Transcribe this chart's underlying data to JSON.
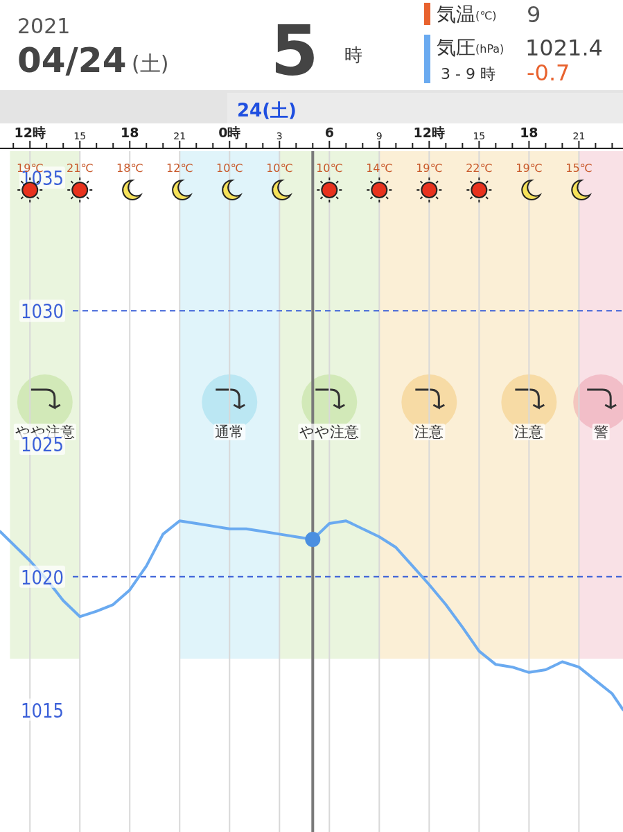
{
  "chart_data": {
    "type": "line",
    "x": [
      "2021-04-23T10:12",
      "2021-04-23T12:00",
      "2021-04-23T13:00",
      "2021-04-23T14:00",
      "2021-04-23T15:00",
      "2021-04-23T16:00",
      "2021-04-23T17:00",
      "2021-04-23T18:00",
      "2021-04-23T19:00",
      "2021-04-23T20:00",
      "2021-04-23T21:00",
      "2021-04-23T22:00",
      "2021-04-23T23:00",
      "2021-04-24T00:00",
      "2021-04-24T01:00",
      "2021-04-24T02:00",
      "2021-04-24T03:00",
      "2021-04-24T04:00",
      "2021-04-24T05:00",
      "2021-04-24T06:00",
      "2021-04-24T07:00",
      "2021-04-24T08:00",
      "2021-04-24T09:00",
      "2021-04-24T10:00",
      "2021-04-24T11:00",
      "2021-04-24T12:00",
      "2021-04-24T13:00",
      "2021-04-24T14:00",
      "2021-04-24T15:00",
      "2021-04-24T16:00",
      "2021-04-24T17:00",
      "2021-04-24T18:00",
      "2021-04-24T19:00",
      "2021-04-24T20:00",
      "2021-04-24T21:00",
      "2021-04-24T22:00",
      "2021-04-24T23:00",
      "2021-04-24T23:39"
    ],
    "series": [
      {
        "color": "#6aaaf0",
        "values": [
          1021.7,
          1020.6,
          1019.9,
          1019.1,
          1018.5,
          1018.7,
          1018.95,
          1019.5,
          1020.4,
          1021.6,
          1022.1,
          1022.0,
          1021.9,
          1021.8,
          1021.8,
          1021.7,
          1021.6,
          1021.5,
          1021.4,
          1022.0,
          1022.1,
          1021.8,
          1021.5,
          1021.1,
          1020.4,
          1019.7,
          1018.95,
          1018.1,
          1017.2,
          1016.7,
          1016.6,
          1016.4,
          1016.5,
          1016.8,
          1016.6,
          1016.1,
          1015.6,
          1015.0
        ]
      }
    ],
    "xlim": [
      "2021-04-23T10:12",
      "2021-04-24T23:39"
    ],
    "ylim": [
      1010.4,
      1036
    ],
    "yticks": [
      1015,
      1020,
      1025,
      1030,
      1035
    ],
    "xticks": [
      {
        "value": "2021-04-23T11:00",
        "label": null
      },
      {
        "value": "2021-04-23T12:00",
        "label": "12時"
      },
      {
        "value": "2021-04-23T13:00",
        "label": null
      },
      {
        "value": "2021-04-23T14:00",
        "label": null
      },
      {
        "value": "2021-04-23T15:00",
        "label": "15"
      },
      {
        "value": "2021-04-23T16:00",
        "label": null
      },
      {
        "value": "2021-04-23T17:00",
        "label": null
      },
      {
        "value": "2021-04-23T18:00",
        "label": "18"
      },
      {
        "value": "2021-04-23T19:00",
        "label": null
      },
      {
        "value": "2021-04-23T20:00",
        "label": null
      },
      {
        "value": "2021-04-23T21:00",
        "label": "21"
      },
      {
        "value": "2021-04-23T22:00",
        "label": null
      },
      {
        "value": "2021-04-23T23:00",
        "label": null
      },
      {
        "value": "2021-04-24T00:00",
        "label": "0時"
      },
      {
        "value": "2021-04-24T01:00",
        "label": null
      },
      {
        "value": "2021-04-24T02:00",
        "label": null
      },
      {
        "value": "2021-04-24T03:00",
        "label": "3"
      },
      {
        "value": "2021-04-24T04:00",
        "label": null
      },
      {
        "value": "2021-04-24T05:00",
        "label": null
      },
      {
        "value": "2021-04-24T06:00",
        "label": "6"
      },
      {
        "value": "2021-04-24T07:00",
        "label": null
      },
      {
        "value": "2021-04-24T08:00",
        "label": null
      },
      {
        "value": "2021-04-24T09:00",
        "label": "9"
      },
      {
        "value": "2021-04-24T10:00",
        "label": null
      },
      {
        "value": "2021-04-24T11:00",
        "label": null
      },
      {
        "value": "2021-04-24T12:00",
        "label": "12時"
      },
      {
        "value": "2021-04-24T13:00",
        "label": null
      },
      {
        "value": "2021-04-24T14:00",
        "label": null
      },
      {
        "value": "2021-04-24T15:00",
        "label": "15"
      },
      {
        "value": "2021-04-24T16:00",
        "label": null
      },
      {
        "value": "2021-04-24T17:00",
        "label": null
      },
      {
        "value": "2021-04-24T18:00",
        "label": "18"
      },
      {
        "value": "2021-04-24T19:00",
        "label": null
      },
      {
        "value": "2021-04-24T20:00",
        "label": null
      },
      {
        "value": "2021-04-24T21:00",
        "label": "21"
      },
      {
        "value": "2021-04-24T22:00",
        "label": null
      },
      {
        "value": "2021-04-24T23:00",
        "label": null
      }
    ],
    "grid": "x",
    "ref_lines": [
      {
        "axis": "y",
        "value": 1030,
        "color": "#3a5fd8",
        "line_style": "dashed"
      },
      {
        "axis": "y",
        "value": 1020,
        "color": "#3a5fd8",
        "line_style": "dashed"
      },
      {
        "axis": "x",
        "value": "2021-04-24T05:00",
        "color": "#7a7a7a",
        "line_style": "solid"
      }
    ],
    "bands": [
      {
        "axis": "x",
        "from": "2021-04-23T10:48",
        "to": "2021-04-23T15:00",
        "label": "やや注意",
        "color": "#b5dc8a"
      },
      {
        "axis": "x",
        "from": "2021-04-23T21:00",
        "to": "2021-04-24T03:00",
        "label": "通常",
        "color": "#8fd8ec"
      },
      {
        "axis": "x",
        "from": "2021-04-24T03:00",
        "to": "2021-04-24T09:00",
        "label": "やや注意",
        "color": "#b5dc8a"
      },
      {
        "axis": "x",
        "from": "2021-04-24T09:00",
        "to": "2021-04-24T15:00",
        "label": "注意",
        "color": "#f2c46a"
      },
      {
        "axis": "x",
        "from": "2021-04-24T15:00",
        "to": "2021-04-24T21:00",
        "label": "注意",
        "color": "#f2c46a"
      },
      {
        "axis": "x",
        "from": "2021-04-24T21:00",
        "to": "2021-04-24T23:39",
        "label": "警",
        "color": "#e894a4"
      }
    ],
    "annotations": [
      "2021",
      "04/24",
      "(土)",
      "5",
      "時",
      "気温",
      "(℃)",
      "9",
      "気圧",
      "(hPa)",
      "1021.4",
      "3 - 9 時",
      "-0.7",
      "24(土)",
      "19℃",
      "21℃",
      "18℃",
      "12℃",
      "10℃",
      "10℃",
      "10℃",
      "14℃",
      "19℃",
      "22℃",
      "19℃",
      "15℃"
    ]
  }
}
